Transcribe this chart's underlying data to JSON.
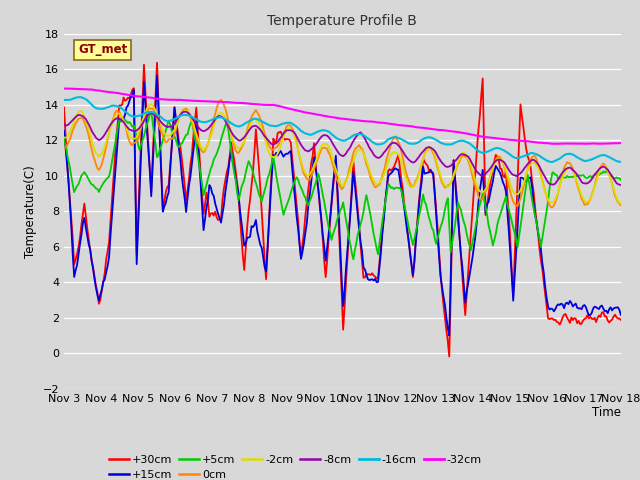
{
  "title": "Temperature Profile B",
  "xlabel": "Time",
  "ylabel": "Temperature(C)",
  "ylim": [
    -2,
    18
  ],
  "bg_color": "#d8d8d8",
  "plot_bg_color": "#d8d8d8",
  "grid_color": "white",
  "annotation_text": "GT_met",
  "annotation_box_color": "#ffff99",
  "annotation_box_edge": "#8B6914",
  "xtick_labels": [
    "Nov 3",
    "Nov 4",
    "Nov 5",
    "Nov 6",
    "Nov 7",
    "Nov 8",
    "Nov 9",
    "Nov 10",
    "Nov 11",
    "Nov 12",
    "Nov 13",
    "Nov 14",
    "Nov 15",
    "Nov 16",
    "Nov 17",
    "Nov 18"
  ],
  "series_colors": [
    "#ff0000",
    "#0000dd",
    "#00cc00",
    "#ff8800",
    "#dddd00",
    "#9900aa",
    "#00bbdd",
    "#ff00ff"
  ],
  "series_labels": [
    "+30cm",
    "+15cm",
    "+5cm",
    "0cm",
    "-2cm",
    "-8cm",
    "-16cm",
    "-32cm"
  ],
  "series_lw": [
    1.3,
    1.3,
    1.3,
    1.3,
    1.3,
    1.3,
    1.5,
    1.5
  ],
  "legend_ncol1": 6,
  "legend_ncol2": 2
}
